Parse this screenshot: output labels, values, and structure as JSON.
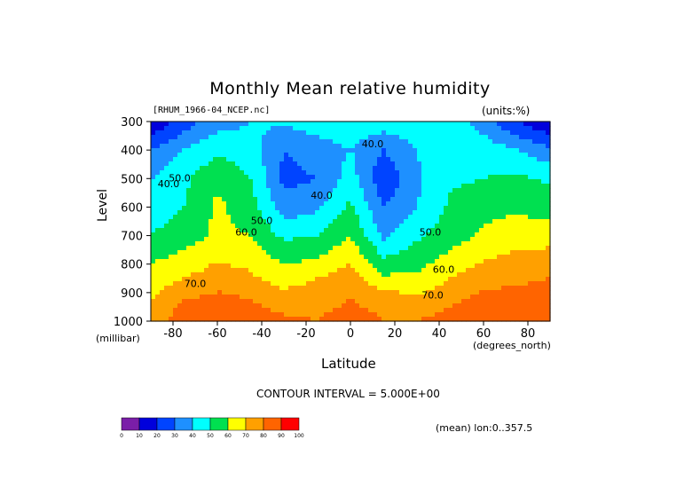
{
  "chart_data": {
    "type": "heatmap",
    "title": "Monthly Mean relative humidity",
    "file_label": "[RHUM_1966-04_NCEP.nc]",
    "units_label": "(units:%)",
    "xlabel": "Latitude",
    "x_unit": "(degrees_north)",
    "ylabel": "Level",
    "y_unit": "(millibar)",
    "xlim": [
      -90,
      90
    ],
    "ylim": [
      1000,
      300
    ],
    "x_ticks": [
      "-80",
      "-60",
      "-40",
      "-20",
      "0",
      "20",
      "40",
      "60",
      "80"
    ],
    "x_tick_values": [
      -80,
      -60,
      -40,
      -20,
      0,
      20,
      40,
      60,
      80
    ],
    "y_ticks": [
      "300",
      "400",
      "500",
      "600",
      "700",
      "800",
      "900",
      "1000"
    ],
    "y_tick_values": [
      300,
      400,
      500,
      600,
      700,
      800,
      900,
      1000
    ],
    "contour_interval_text": "CONTOUR INTERVAL = 5.000E+00",
    "mean_text": "(mean) lon:0..357.5",
    "contour_labels": [
      {
        "text": "40.0",
        "lat": 10,
        "level": 390
      },
      {
        "text": "40.0",
        "lat": -13,
        "level": 570
      },
      {
        "text": "40.0",
        "lat": -82,
        "level": 530
      },
      {
        "text": "50.0",
        "lat": -77,
        "level": 510
      },
      {
        "text": "50.0",
        "lat": -40,
        "level": 660
      },
      {
        "text": "50.0",
        "lat": 36,
        "level": 700
      },
      {
        "text": "60.0",
        "lat": -47,
        "level": 700
      },
      {
        "text": "60.0",
        "lat": 42,
        "level": 830
      },
      {
        "text": "70.0",
        "lat": -70,
        "level": 880
      },
      {
        "text": "70.0",
        "lat": 37,
        "level": 920
      }
    ],
    "colorbar": {
      "tick_labels": [
        "0",
        "10",
        "20",
        "30",
        "40",
        "50",
        "60",
        "70",
        "80",
        "90",
        "100"
      ],
      "colors": [
        "#7a1ea8",
        "#0000dc",
        "#0044ff",
        "#1e90ff",
        "#00ffff",
        "#00e050",
        "#ffff00",
        "#ffa000",
        "#ff6400",
        "#ff0000"
      ]
    },
    "lat": [
      -90,
      -75,
      -60,
      -45,
      -30,
      -15,
      0,
      15,
      30,
      45,
      60,
      75,
      90
    ],
    "levels": [
      1000,
      925,
      850,
      700,
      600,
      500,
      400,
      300
    ],
    "values": [
      [
        70,
        88,
        90,
        86,
        82,
        80,
        85,
        80,
        80,
        84,
        86,
        86,
        85
      ],
      [
        70,
        80,
        83,
        80,
        75,
        76,
        80,
        76,
        72,
        78,
        83,
        84,
        85
      ],
      [
        65,
        70,
        75,
        72,
        65,
        70,
        75,
        62,
        62,
        70,
        76,
        78,
        80
      ],
      [
        50,
        55,
        62,
        60,
        48,
        50,
        60,
        38,
        48,
        55,
        62,
        66,
        66
      ],
      [
        45,
        50,
        62,
        55,
        34,
        38,
        52,
        30,
        40,
        52,
        56,
        58,
        55
      ],
      [
        40,
        48,
        58,
        50,
        27,
        30,
        45,
        22,
        38,
        48,
        50,
        52,
        48
      ],
      [
        30,
        40,
        48,
        45,
        30,
        35,
        40,
        30,
        40,
        50,
        46,
        40,
        32
      ],
      [
        10,
        25,
        35,
        40,
        42,
        45,
        48,
        46,
        48,
        45,
        35,
        20,
        10
      ]
    ]
  }
}
